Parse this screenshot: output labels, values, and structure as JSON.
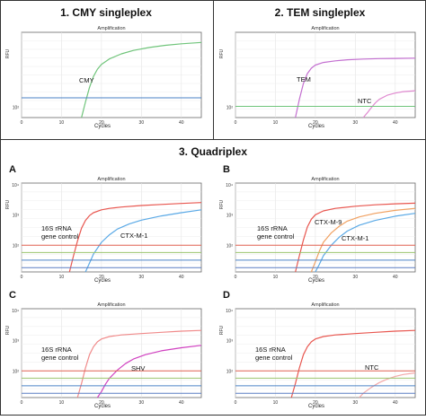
{
  "sections": [
    {
      "title": "1. CMY singleplex"
    },
    {
      "title": "2. TEM singleplex"
    },
    {
      "title": "3. Quadriplex"
    }
  ],
  "panel_letters": [
    "A",
    "B",
    "C",
    "D"
  ],
  "chart_data": [
    {
      "type": "line",
      "panel": "1",
      "title": "Amplification",
      "xlabel": "Cycles",
      "ylabel": "RFU",
      "xlim": [
        0,
        45
      ],
      "xticks": [
        0,
        10,
        20,
        30,
        40
      ],
      "yscale": "log",
      "ylim": [
        50,
        20000
      ],
      "yticks": [
        "10²"
      ],
      "grid": true,
      "series": [
        {
          "name": "CMY",
          "color": "#6fc47a",
          "x": [
            15,
            16,
            17,
            18,
            19,
            20,
            22,
            25,
            28,
            32,
            36,
            40,
            45
          ],
          "y": [
            50,
            150,
            420,
            900,
            1500,
            2100,
            3100,
            4400,
            5600,
            6900,
            8000,
            8900,
            9800
          ]
        },
        {
          "color": "#4a82c6",
          "x": [
            0,
            45
          ],
          "y": [
            200,
            200
          ]
        }
      ]
    },
    {
      "type": "line",
      "panel": "2",
      "title": "Amplification",
      "xlabel": "Cycles",
      "ylabel": "RFU",
      "xlim": [
        0,
        45
      ],
      "xticks": [
        0,
        10,
        20,
        30,
        40
      ],
      "yscale": "log",
      "ylim": [
        50,
        20000
      ],
      "yticks": [
        "10²"
      ],
      "grid": true,
      "series": [
        {
          "name": "TEM",
          "color": "#c36fd0",
          "x": [
            15,
            16,
            17,
            18,
            19,
            20,
            22,
            25,
            28,
            32,
            36,
            40,
            45
          ],
          "y": [
            50,
            180,
            550,
            1100,
            1600,
            2000,
            2400,
            2700,
            2900,
            3050,
            3150,
            3200,
            3250
          ]
        },
        {
          "name": "NTC",
          "color": "#e08ad0",
          "x": [
            32,
            33,
            34,
            35,
            36,
            38,
            40,
            42,
            45
          ],
          "y": [
            50,
            70,
            100,
            140,
            180,
            240,
            280,
            310,
            330
          ]
        },
        {
          "color": "#6fc47a",
          "x": [
            0,
            45
          ],
          "y": [
            110,
            110
          ]
        }
      ]
    },
    {
      "type": "line",
      "panel": "A",
      "title": "Amplification",
      "xlabel": "Cycles",
      "ylabel": "RFU",
      "xlim": [
        0,
        45
      ],
      "xticks": [
        0,
        10,
        20,
        30,
        40
      ],
      "yscale": "log",
      "ylim": [
        10,
        10000
      ],
      "yticks": [
        "10⁴",
        "10³",
        "10²"
      ],
      "grid": true,
      "series": [
        {
          "name": "16S rRNA gene control",
          "color": "#e8564f",
          "x": [
            12,
            13,
            14,
            15,
            16,
            17,
            18,
            20,
            22,
            25,
            30,
            35,
            40,
            45
          ],
          "y": [
            10,
            35,
            110,
            300,
            550,
            800,
            1000,
            1250,
            1400,
            1550,
            1750,
            1900,
            2050,
            2200
          ]
        },
        {
          "name": "CTX-M-1",
          "color": "#5aa9e6",
          "x": [
            16,
            17,
            18,
            20,
            22,
            24,
            27,
            30,
            35,
            40,
            45
          ],
          "y": [
            10,
            20,
            40,
            100,
            180,
            280,
            420,
            560,
            780,
            1000,
            1250
          ]
        },
        {
          "color": "#e06050",
          "x": [
            0,
            45
          ],
          "y": [
            80,
            80
          ]
        },
        {
          "color": "#9bc46e",
          "x": [
            0,
            45
          ],
          "y": [
            45,
            45
          ]
        },
        {
          "color": "#4a82c6",
          "x": [
            0,
            45
          ],
          "y": [
            25,
            25
          ]
        },
        {
          "color": "#5a7fc4",
          "x": [
            0,
            45
          ],
          "y": [
            14,
            14
          ]
        }
      ]
    },
    {
      "type": "line",
      "panel": "B",
      "title": "Amplification",
      "xlabel": "Cycles",
      "ylabel": "RFU",
      "xlim": [
        0,
        45
      ],
      "xticks": [
        0,
        10,
        20,
        30,
        40
      ],
      "yscale": "log",
      "ylim": [
        10,
        10000
      ],
      "yticks": [
        "10⁴",
        "10³",
        "10²"
      ],
      "grid": true,
      "series": [
        {
          "name": "16S rRNA gene control",
          "color": "#e8564f",
          "x": [
            15,
            16,
            17,
            18,
            19,
            20,
            22,
            25,
            30,
            35,
            40,
            45
          ],
          "y": [
            10,
            35,
            120,
            330,
            600,
            850,
            1150,
            1400,
            1650,
            1850,
            2000,
            2100
          ]
        },
        {
          "name": "CTX-M-9",
          "color": "#f0a060",
          "x": [
            19,
            20,
            21,
            22,
            24,
            26,
            28,
            31,
            35,
            40,
            45
          ],
          "y": [
            10,
            22,
            50,
            100,
            210,
            350,
            520,
            720,
            950,
            1200,
            1400
          ]
        },
        {
          "name": "CTX-M-1",
          "color": "#5aa9e6",
          "x": [
            20,
            21,
            22,
            24,
            26,
            28,
            31,
            35,
            40,
            45
          ],
          "y": [
            10,
            18,
            35,
            80,
            150,
            240,
            380,
            550,
            760,
            950
          ]
        },
        {
          "color": "#e06050",
          "x": [
            0,
            45
          ],
          "y": [
            80,
            80
          ]
        },
        {
          "color": "#9bc46e",
          "x": [
            0,
            45
          ],
          "y": [
            45,
            45
          ]
        },
        {
          "color": "#4a82c6",
          "x": [
            0,
            45
          ],
          "y": [
            25,
            25
          ]
        },
        {
          "color": "#5a7fc4",
          "x": [
            0,
            45
          ],
          "y": [
            14,
            14
          ]
        }
      ]
    },
    {
      "type": "line",
      "panel": "C",
      "title": "Amplification",
      "xlabel": "Cycles",
      "ylabel": "RFU",
      "xlim": [
        0,
        45
      ],
      "xticks": [
        0,
        10,
        20,
        30,
        40
      ],
      "yscale": "log",
      "ylim": [
        10,
        10000
      ],
      "yticks": [
        "10⁴",
        "10³",
        "10²"
      ],
      "grid": true,
      "series": [
        {
          "name": "16S rRNA gene control",
          "color": "#f08a8a",
          "x": [
            14,
            15,
            16,
            17,
            18,
            19,
            20,
            22,
            25,
            30,
            35,
            40,
            45
          ],
          "y": [
            10,
            30,
            100,
            280,
            520,
            760,
            950,
            1150,
            1300,
            1450,
            1600,
            1750,
            1850
          ]
        },
        {
          "name": "SHV",
          "color": "#d040c0",
          "x": [
            19,
            20,
            21,
            22,
            24,
            26,
            28,
            31,
            35,
            40,
            45
          ],
          "y": [
            10,
            16,
            28,
            45,
            85,
            140,
            200,
            280,
            380,
            480,
            580
          ]
        },
        {
          "color": "#e06050",
          "x": [
            0,
            45
          ],
          "y": [
            80,
            80
          ]
        },
        {
          "color": "#9bc46e",
          "x": [
            0,
            45
          ],
          "y": [
            45,
            45
          ]
        },
        {
          "color": "#4a82c6",
          "x": [
            0,
            45
          ],
          "y": [
            25,
            25
          ]
        },
        {
          "color": "#5a7fc4",
          "x": [
            0,
            45
          ],
          "y": [
            14,
            14
          ]
        }
      ]
    },
    {
      "type": "line",
      "panel": "D",
      "title": "Amplification",
      "xlabel": "Cycles",
      "ylabel": "RFU",
      "xlim": [
        0,
        45
      ],
      "xticks": [
        0,
        10,
        20,
        30,
        40
      ],
      "yscale": "log",
      "ylim": [
        10,
        10000
      ],
      "yticks": [
        "10⁴",
        "10³",
        "10²"
      ],
      "grid": true,
      "series": [
        {
          "name": "16S rRNA gene control",
          "color": "#e8564f",
          "x": [
            14,
            15,
            16,
            17,
            18,
            19,
            20,
            22,
            25,
            30,
            35,
            40,
            45
          ],
          "y": [
            10,
            30,
            100,
            280,
            520,
            760,
            950,
            1150,
            1300,
            1450,
            1600,
            1750,
            1850
          ]
        },
        {
          "name": "NTC",
          "color": "#f3a8a8",
          "x": [
            31,
            32,
            34,
            36,
            38,
            40,
            42,
            45
          ],
          "y": [
            10,
            14,
            22,
            32,
            42,
            52,
            60,
            68
          ]
        },
        {
          "color": "#e06050",
          "x": [
            0,
            45
          ],
          "y": [
            80,
            80
          ]
        },
        {
          "color": "#9bc46e",
          "x": [
            0,
            45
          ],
          "y": [
            45,
            45
          ]
        },
        {
          "color": "#4a82c6",
          "x": [
            0,
            45
          ],
          "y": [
            25,
            25
          ]
        },
        {
          "color": "#5a7fc4",
          "x": [
            0,
            45
          ],
          "y": [
            14,
            14
          ]
        }
      ]
    }
  ],
  "annotations": [
    {
      "panel": 0,
      "lines": [
        "CMY"
      ]
    },
    {
      "panel": 1,
      "lines": [
        "TEM"
      ]
    },
    {
      "panel": 1,
      "lines": [
        "NTC"
      ]
    },
    {
      "panel": 2,
      "lines": [
        "16S rRNA",
        "gene control"
      ]
    },
    {
      "panel": 2,
      "lines": [
        "CTX-M-1"
      ]
    },
    {
      "panel": 3,
      "lines": [
        "16S rRNA",
        "gene control"
      ]
    },
    {
      "panel": 3,
      "lines": [
        "CTX-M-9"
      ]
    },
    {
      "panel": 3,
      "lines": [
        "CTX-M-1"
      ]
    },
    {
      "panel": 4,
      "lines": [
        "16S rRNA",
        "gene control"
      ]
    },
    {
      "panel": 4,
      "lines": [
        "SHV"
      ]
    },
    {
      "panel": 5,
      "lines": [
        "16S rRNA",
        "gene control"
      ]
    },
    {
      "panel": 5,
      "lines": [
        "NTC"
      ]
    }
  ]
}
